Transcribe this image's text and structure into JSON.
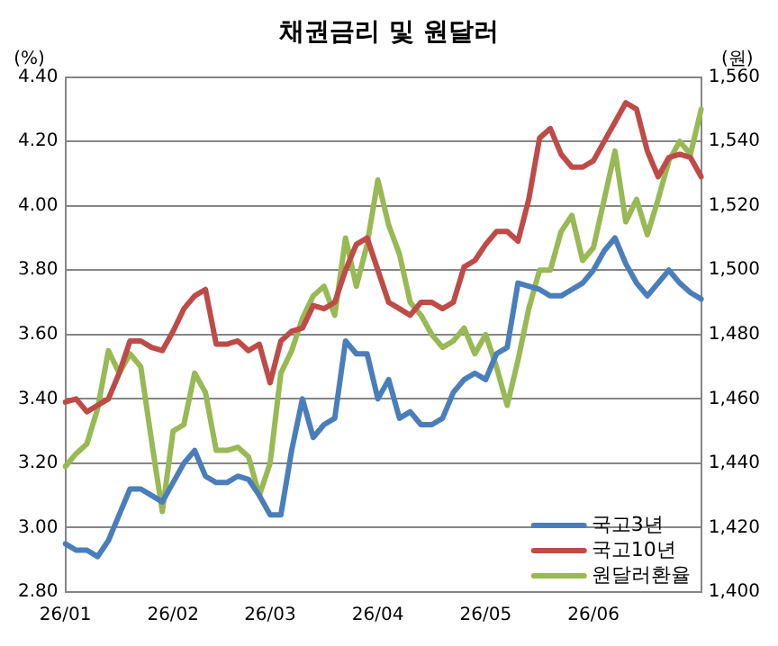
{
  "chart_data": {
    "type": "line",
    "title": "채권금리 및 원달러",
    "ylabel": "(%)",
    "y2label": "(원)",
    "categories": [
      "26/01",
      null,
      null,
      null,
      null,
      null,
      null,
      null,
      null,
      null,
      "26/02",
      null,
      null,
      null,
      null,
      null,
      null,
      null,
      null,
      "26/03",
      null,
      null,
      null,
      null,
      null,
      null,
      null,
      null,
      null,
      "26/04",
      null,
      null,
      null,
      null,
      null,
      null,
      null,
      null,
      null,
      "26/05",
      null,
      null,
      null,
      null,
      null,
      null,
      null,
      null,
      null,
      "26/06",
      null,
      null,
      null,
      null,
      null,
      null,
      null,
      null,
      null,
      null
    ],
    "series": [
      {
        "name": "국고3년",
        "color": "#4a7ebb",
        "values": [
          2.95,
          2.93,
          2.93,
          2.91,
          2.96,
          3.04,
          3.12,
          3.12,
          3.1,
          3.08,
          3.14,
          3.2,
          3.24,
          3.16,
          3.14,
          3.14,
          3.16,
          3.15,
          3.1,
          3.04,
          3.04,
          3.24,
          3.4,
          3.28,
          3.32,
          3.34,
          3.58,
          3.54,
          3.54,
          3.4,
          3.46,
          3.34,
          3.36,
          3.32,
          3.32,
          3.34,
          3.42,
          3.46,
          3.48,
          3.46,
          3.54,
          3.56,
          3.76,
          3.75,
          3.74,
          3.72,
          3.72,
          3.74,
          3.76,
          3.8,
          3.86,
          3.9,
          3.82,
          3.76,
          3.72,
          3.76,
          3.8,
          3.76,
          3.73,
          3.71
        ]
      },
      {
        "name": "국고10년",
        "color": "#be4b48",
        "values": [
          3.39,
          3.4,
          3.36,
          3.38,
          3.4,
          3.48,
          3.58,
          3.58,
          3.56,
          3.55,
          3.61,
          3.68,
          3.72,
          3.74,
          3.57,
          3.57,
          3.58,
          3.55,
          3.57,
          3.45,
          3.58,
          3.61,
          3.62,
          3.69,
          3.68,
          3.7,
          3.8,
          3.88,
          3.9,
          3.8,
          3.7,
          3.68,
          3.66,
          3.7,
          3.7,
          3.68,
          3.7,
          3.81,
          3.83,
          3.88,
          3.92,
          3.92,
          3.89,
          4.02,
          4.21,
          4.24,
          4.16,
          4.12,
          4.12,
          4.14,
          4.2,
          4.26,
          4.32,
          4.3,
          4.17,
          4.09,
          4.15,
          4.16,
          4.15,
          4.09
        ]
      },
      {
        "name": "원달러환율",
        "color": "#98b954",
        "axis": "y2",
        "values": [
          1439,
          1443,
          1446,
          1457,
          1475,
          1468,
          1474,
          1470,
          1447,
          1425,
          1450,
          1452,
          1468,
          1462,
          1444,
          1444,
          1445,
          1442,
          1430,
          1440,
          1468,
          1475,
          1485,
          1492,
          1495,
          1486,
          1510,
          1495,
          1508,
          1528,
          1514,
          1505,
          1490,
          1486,
          1480,
          1476,
          1478,
          1482,
          1474,
          1480,
          1470,
          1458,
          1472,
          1488,
          1500,
          1500,
          1512,
          1517,
          1503,
          1507,
          1522,
          1537,
          1515,
          1522,
          1511,
          1522,
          1534,
          1540,
          1536,
          1550
        ]
      }
    ],
    "ylim": [
      2.8,
      4.4
    ],
    "yticks": [
      {
        "value": 2.8,
        "label": "2.80"
      },
      {
        "value": 3.0,
        "label": "3.00"
      },
      {
        "value": 3.2,
        "label": "3.20"
      },
      {
        "value": 3.4,
        "label": "3.40"
      },
      {
        "value": 3.6,
        "label": "3.60"
      },
      {
        "value": 3.8,
        "label": "3.80"
      },
      {
        "value": 4.0,
        "label": "4.00"
      },
      {
        "value": 4.2,
        "label": "4.20"
      },
      {
        "value": 4.4,
        "label": "4.40"
      }
    ],
    "y2lim": [
      1400,
      1560
    ],
    "y2ticks": [
      {
        "value": 1400,
        "label": "1,400"
      },
      {
        "value": 1420,
        "label": "1,420"
      },
      {
        "value": 1440,
        "label": "1,440"
      },
      {
        "value": 1460,
        "label": "1,460"
      },
      {
        "value": 1480,
        "label": "1,480"
      },
      {
        "value": 1500,
        "label": "1,500"
      },
      {
        "value": 1520,
        "label": "1,520"
      },
      {
        "value": 1540,
        "label": "1,540"
      },
      {
        "value": 1560,
        "label": "1,560"
      }
    ],
    "grid": "y",
    "legend": "bottom right",
    "marker": "none",
    "line_style": "solid"
  }
}
